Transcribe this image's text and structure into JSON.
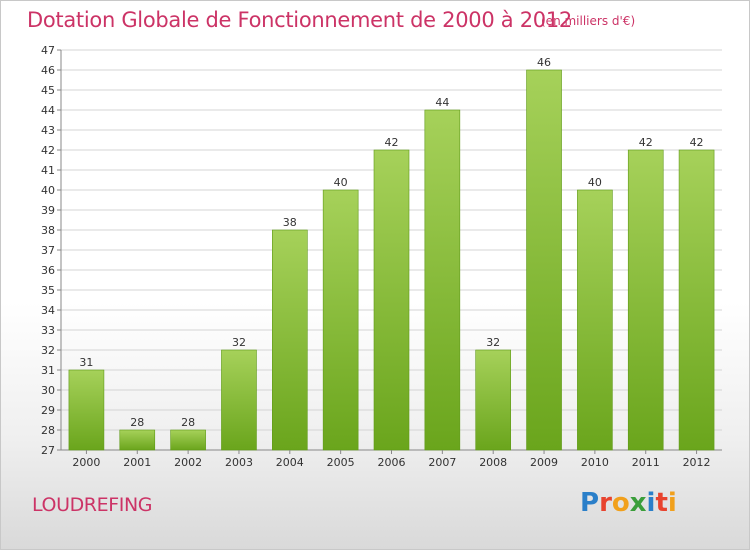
{
  "header": {
    "title": "Dotation Globale de Fonctionnement de 2000 à 2012",
    "subtitle": "(en milliers d'€)"
  },
  "footer": {
    "commune": "LOUDREFING",
    "logo_text": "Proxiti"
  },
  "colors": {
    "title": "#cc3366",
    "bar_light": "#a6d15a",
    "bar_dark": "#6aa51c",
    "grid": "#d4d4d4"
  },
  "chart_data": {
    "type": "bar",
    "title": "Dotation Globale de Fonctionnement de 2000 à 2012",
    "subtitle": "(en milliers d'€)",
    "xlabel": "",
    "ylabel": "",
    "categories": [
      "2000",
      "2001",
      "2002",
      "2003",
      "2004",
      "2005",
      "2006",
      "2007",
      "2008",
      "2009",
      "2010",
      "2011",
      "2012"
    ],
    "values": [
      31,
      28,
      28,
      32,
      38,
      40,
      42,
      44,
      32,
      46,
      40,
      42,
      42
    ],
    "ylim": [
      27,
      47
    ],
    "yticks": [
      27,
      28,
      29,
      30,
      31,
      32,
      33,
      34,
      35,
      36,
      37,
      38,
      39,
      40,
      41,
      42,
      43,
      44,
      45,
      46,
      47
    ],
    "grid": true,
    "data_labels": true
  }
}
